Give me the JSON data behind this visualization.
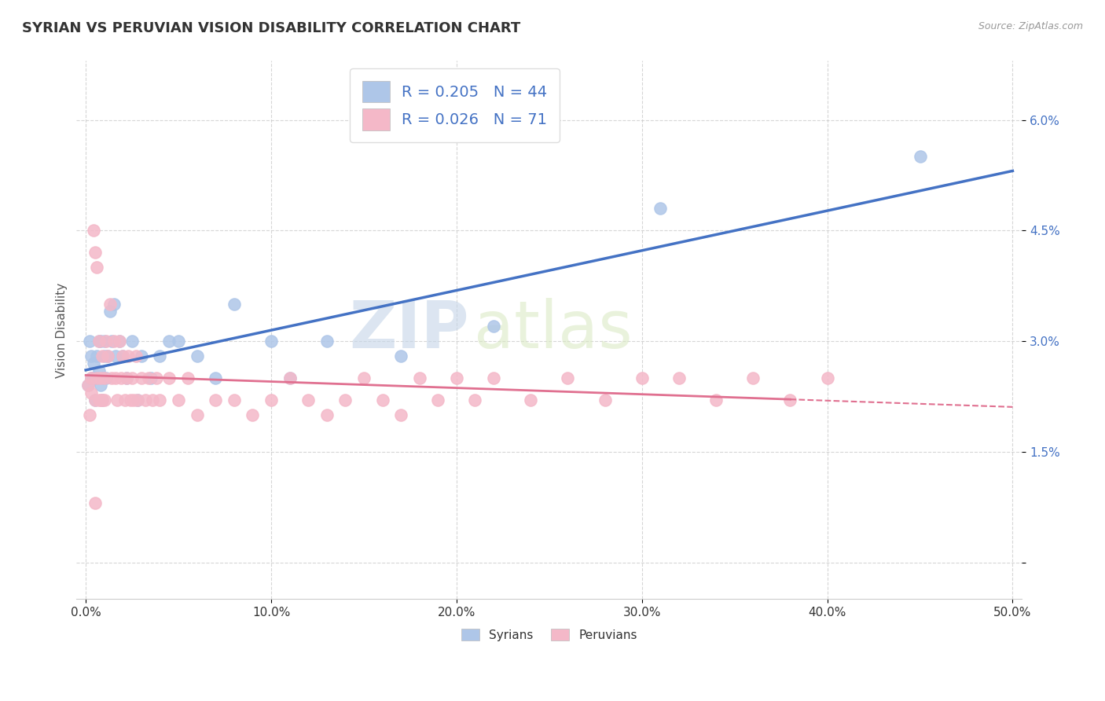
{
  "title": "SYRIAN VS PERUVIAN VISION DISABILITY CORRELATION CHART",
  "source": "Source: ZipAtlas.com",
  "ylabel": "Vision Disability",
  "xlim": [
    -0.005,
    0.505
  ],
  "ylim": [
    -0.005,
    0.068
  ],
  "xticks": [
    0.0,
    0.1,
    0.2,
    0.3,
    0.4,
    0.5
  ],
  "xtick_labels": [
    "0.0%",
    "10.0%",
    "20.0%",
    "30.0%",
    "40.0%",
    "50.0%"
  ],
  "yticks": [
    0.0,
    0.015,
    0.03,
    0.045,
    0.06
  ],
  "ytick_labels": [
    "",
    "1.5%",
    "3.0%",
    "4.5%",
    "6.0%"
  ],
  "syrian_color": "#aec6e8",
  "peruvian_color": "#f4b8c8",
  "syrian_line_color": "#4472c4",
  "peruvian_line_color": "#e07090",
  "R_syrian": 0.205,
  "N_syrian": 44,
  "R_peruvian": 0.026,
  "N_peruvian": 71,
  "legend_label_1": "Syrians",
  "legend_label_2": "Peruvians",
  "background_color": "#ffffff",
  "grid_color": "#cccccc",
  "watermark_zip": "ZIP",
  "watermark_atlas": "atlas",
  "title_fontsize": 13,
  "label_fontsize": 11,
  "tick_fontsize": 11,
  "syrian_x": [
    0.001,
    0.002,
    0.003,
    0.003,
    0.004,
    0.004,
    0.005,
    0.005,
    0.006,
    0.006,
    0.007,
    0.007,
    0.008,
    0.008,
    0.009,
    0.009,
    0.01,
    0.01,
    0.011,
    0.012,
    0.013,
    0.014,
    0.015,
    0.016,
    0.018,
    0.02,
    0.022,
    0.025,
    0.028,
    0.03,
    0.035,
    0.04,
    0.045,
    0.05,
    0.06,
    0.07,
    0.08,
    0.1,
    0.11,
    0.13,
    0.17,
    0.22,
    0.31,
    0.45
  ],
  "syrian_y": [
    0.024,
    0.03,
    0.025,
    0.028,
    0.025,
    0.027,
    0.025,
    0.022,
    0.025,
    0.028,
    0.03,
    0.026,
    0.03,
    0.024,
    0.025,
    0.022,
    0.028,
    0.03,
    0.025,
    0.028,
    0.034,
    0.03,
    0.035,
    0.028,
    0.03,
    0.028,
    0.025,
    0.03,
    0.022,
    0.028,
    0.025,
    0.028,
    0.03,
    0.03,
    0.028,
    0.025,
    0.035,
    0.03,
    0.025,
    0.03,
    0.028,
    0.032,
    0.048,
    0.055
  ],
  "peruvian_x": [
    0.001,
    0.002,
    0.003,
    0.003,
    0.004,
    0.005,
    0.005,
    0.006,
    0.006,
    0.007,
    0.007,
    0.008,
    0.008,
    0.009,
    0.009,
    0.01,
    0.01,
    0.011,
    0.012,
    0.013,
    0.014,
    0.015,
    0.016,
    0.017,
    0.018,
    0.019,
    0.02,
    0.021,
    0.022,
    0.023,
    0.024,
    0.025,
    0.026,
    0.027,
    0.028,
    0.03,
    0.032,
    0.034,
    0.036,
    0.038,
    0.04,
    0.045,
    0.05,
    0.055,
    0.06,
    0.07,
    0.08,
    0.09,
    0.1,
    0.11,
    0.12,
    0.13,
    0.14,
    0.15,
    0.16,
    0.17,
    0.18,
    0.19,
    0.2,
    0.21,
    0.22,
    0.24,
    0.26,
    0.28,
    0.3,
    0.32,
    0.34,
    0.36,
    0.38,
    0.4,
    0.005
  ],
  "peruvian_y": [
    0.024,
    0.02,
    0.025,
    0.023,
    0.045,
    0.042,
    0.022,
    0.04,
    0.025,
    0.03,
    0.022,
    0.025,
    0.022,
    0.022,
    0.028,
    0.025,
    0.022,
    0.03,
    0.028,
    0.035,
    0.025,
    0.03,
    0.025,
    0.022,
    0.03,
    0.025,
    0.028,
    0.022,
    0.025,
    0.028,
    0.022,
    0.025,
    0.022,
    0.028,
    0.022,
    0.025,
    0.022,
    0.025,
    0.022,
    0.025,
    0.022,
    0.025,
    0.022,
    0.025,
    0.02,
    0.022,
    0.022,
    0.02,
    0.022,
    0.025,
    0.022,
    0.02,
    0.022,
    0.025,
    0.022,
    0.02,
    0.025,
    0.022,
    0.025,
    0.022,
    0.025,
    0.022,
    0.025,
    0.022,
    0.025,
    0.025,
    0.022,
    0.025,
    0.022,
    0.025,
    0.008
  ]
}
